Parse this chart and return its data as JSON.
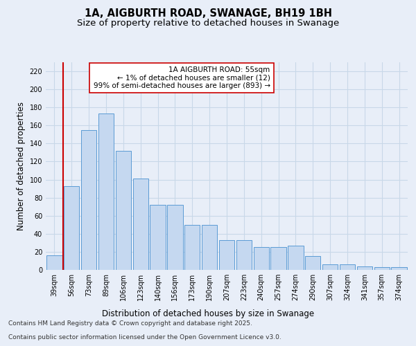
{
  "title1": "1A, AIGBURTH ROAD, SWANAGE, BH19 1BH",
  "title2": "Size of property relative to detached houses in Swanage",
  "xlabel": "Distribution of detached houses by size in Swanage",
  "ylabel": "Number of detached properties",
  "categories": [
    "39sqm",
    "56sqm",
    "73sqm",
    "89sqm",
    "106sqm",
    "123sqm",
    "140sqm",
    "156sqm",
    "173sqm",
    "190sqm",
    "207sqm",
    "223sqm",
    "240sqm",
    "257sqm",
    "274sqm",
    "290sqm",
    "307sqm",
    "324sqm",
    "341sqm",
    "357sqm",
    "374sqm"
  ],
  "values": [
    16,
    93,
    155,
    173,
    132,
    101,
    72,
    72,
    50,
    50,
    33,
    33,
    25,
    25,
    27,
    15,
    6,
    6,
    4,
    3,
    3
  ],
  "bar_color": "#c5d8f0",
  "bar_edge_color": "#5b9bd5",
  "grid_color": "#c8d8e8",
  "background_color": "#e8eef8",
  "vline_color": "#cc0000",
  "annotation_text": "1A AIGBURTH ROAD: 55sqm\n← 1% of detached houses are smaller (12)\n99% of semi-detached houses are larger (893) →",
  "annotation_box_color": "#ffffff",
  "annotation_box_edge_color": "#cc0000",
  "ylim": [
    0,
    230
  ],
  "yticks": [
    0,
    20,
    40,
    60,
    80,
    100,
    120,
    140,
    160,
    180,
    200,
    220
  ],
  "footer_line1": "Contains HM Land Registry data © Crown copyright and database right 2025.",
  "footer_line2": "Contains public sector information licensed under the Open Government Licence v3.0.",
  "title_fontsize": 10.5,
  "subtitle_fontsize": 9.5,
  "axis_label_fontsize": 8.5,
  "tick_fontsize": 7,
  "annotation_fontsize": 7.5,
  "footer_fontsize": 6.5
}
